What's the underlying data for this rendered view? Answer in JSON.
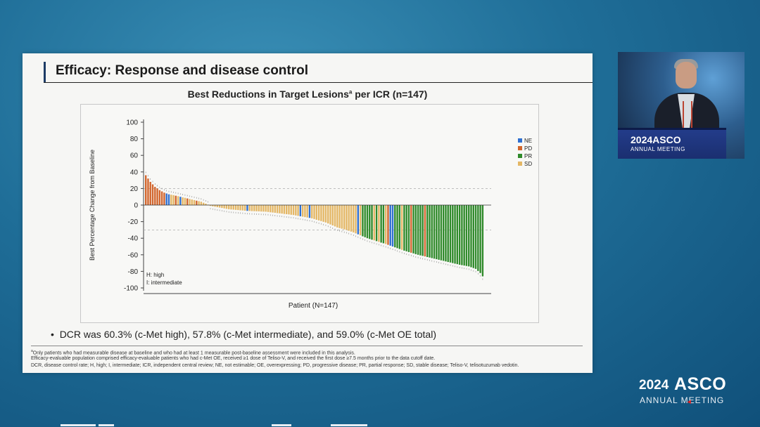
{
  "slide": {
    "title": "Efficacy: Response and disease control",
    "bullet": "DCR was 60.3% (c-Met high), 57.8% (c-Met intermediate), and 59.0% (c-Met OE total)",
    "footnotes": {
      "a_marker": "a",
      "a_text": "Only patients who had measurable disease at baseline and who had at least 1 measurable post-baseline assessment were included in this analysis.",
      "line2": "Efficacy-evaluable population comprised efficacy-evaluable patients who had c-Met OE, received ≥1 dose of Teliso-V, and received the first dose ≥7.5 months prior to the data cutoff date.",
      "line3": "DCR, disease control rate; H, high; I, intermediate; ICR, independent central review; NE, not estimable; OE, overexpressing; PD, progressive disease; PR, partial response; SD, stable disease; Teliso-V, telisotuzumab vedotin."
    }
  },
  "presenter": {
    "logo_year": "2024",
    "logo_name": "ASCO",
    "logo_sub": "ANNUAL MEETING"
  },
  "branding": {
    "year": "2024",
    "name": "ASCO",
    "sub": "ANNUAL MEETING"
  },
  "chart_data": {
    "type": "bar",
    "title_main": "Best Reductions in Target Lesions",
    "title_sup": "a",
    "title_tail": " per ICR (n=147)",
    "xlabel": "Patient (N=147)",
    "ylabel": "Best Percentage Change from Baseline",
    "ylim": [
      -100,
      100
    ],
    "yticks": [
      100,
      80,
      60,
      40,
      20,
      0,
      -20,
      -40,
      -60,
      -80,
      -100
    ],
    "reference_lines": [
      20,
      -30
    ],
    "annotation": [
      "H: high",
      "I: intermediate"
    ],
    "legend": [
      {
        "code": "NE",
        "color": "#2f6fd0"
      },
      {
        "code": "PD",
        "color": "#d2652c"
      },
      {
        "code": "PR",
        "color": "#2f8a2a"
      },
      {
        "code": "SD",
        "color": "#e4b765"
      }
    ],
    "legend_position": "top-right",
    "n": 147,
    "anchors": [
      [
        0,
        36
      ],
      [
        2,
        28
      ],
      [
        4,
        22
      ],
      [
        6,
        18
      ],
      [
        8,
        15
      ],
      [
        10,
        13
      ],
      [
        12,
        12
      ],
      [
        15,
        10
      ],
      [
        18,
        8
      ],
      [
        21,
        6
      ],
      [
        24,
        4
      ],
      [
        27,
        0.5
      ],
      [
        28,
        -1
      ],
      [
        32,
        -3
      ],
      [
        36,
        -5
      ],
      [
        44,
        -7
      ],
      [
        52,
        -8
      ],
      [
        58,
        -10
      ],
      [
        64,
        -12
      ],
      [
        72,
        -16
      ],
      [
        78,
        -21
      ],
      [
        83,
        -27
      ],
      [
        87,
        -30
      ],
      [
        90,
        -33
      ],
      [
        96,
        -40
      ],
      [
        104,
        -47
      ],
      [
        112,
        -55
      ],
      [
        118,
        -60
      ],
      [
        124,
        -64
      ],
      [
        130,
        -68
      ],
      [
        136,
        -72
      ],
      [
        140,
        -74
      ],
      [
        143,
        -77
      ],
      [
        145,
        -82
      ],
      [
        146,
        -86
      ]
    ],
    "status_ranges": [
      {
        "from": 0,
        "to": 8,
        "status": "PD"
      },
      {
        "from": 9,
        "to": 26,
        "status": "SD"
      },
      {
        "from": 27,
        "to": 93,
        "status": "SD"
      },
      {
        "from": 94,
        "to": 146,
        "status": "PR"
      }
    ],
    "overrides": [
      {
        "index": 9,
        "status": "NE"
      },
      {
        "index": 10,
        "status": "NE"
      },
      {
        "index": 13,
        "status": "PD"
      },
      {
        "index": 15,
        "status": "NE"
      },
      {
        "index": 18,
        "status": "PD"
      },
      {
        "index": 22,
        "status": "PD"
      },
      {
        "index": 44,
        "status": "NE"
      },
      {
        "index": 67,
        "status": "NE"
      },
      {
        "index": 71,
        "status": "NE"
      },
      {
        "index": 92,
        "status": "NE"
      },
      {
        "index": 99,
        "status": "SD"
      },
      {
        "index": 101,
        "status": "SD"
      },
      {
        "index": 104,
        "status": "SD"
      },
      {
        "index": 105,
        "status": "PD"
      },
      {
        "index": 106,
        "status": "NE"
      },
      {
        "index": 107,
        "status": "NE"
      },
      {
        "index": 111,
        "status": "SD"
      },
      {
        "index": 115,
        "status": "PD"
      },
      {
        "index": 121,
        "status": "PD"
      }
    ]
  }
}
